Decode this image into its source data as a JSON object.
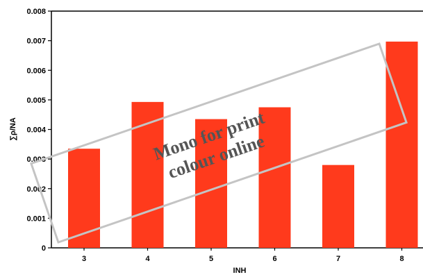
{
  "chart_data": {
    "type": "bar",
    "categories": [
      "3",
      "4",
      "5",
      "6",
      "7",
      "8"
    ],
    "values": [
      0.00335,
      0.00493,
      0.00435,
      0.00475,
      0.0028,
      0.00697
    ],
    "xlabel": "INH",
    "ylabel": "∑ρ/NA",
    "ylim": [
      0,
      0.008
    ],
    "yticks": [
      "0",
      "0.001",
      "0.002",
      "0.003",
      "0.004",
      "0.005",
      "0.006",
      "0.007",
      "0.008"
    ],
    "grid": false,
    "bar_color": "#ff3a1c"
  },
  "watermark": {
    "line1": "Mono for print",
    "line2": "colour online"
  }
}
